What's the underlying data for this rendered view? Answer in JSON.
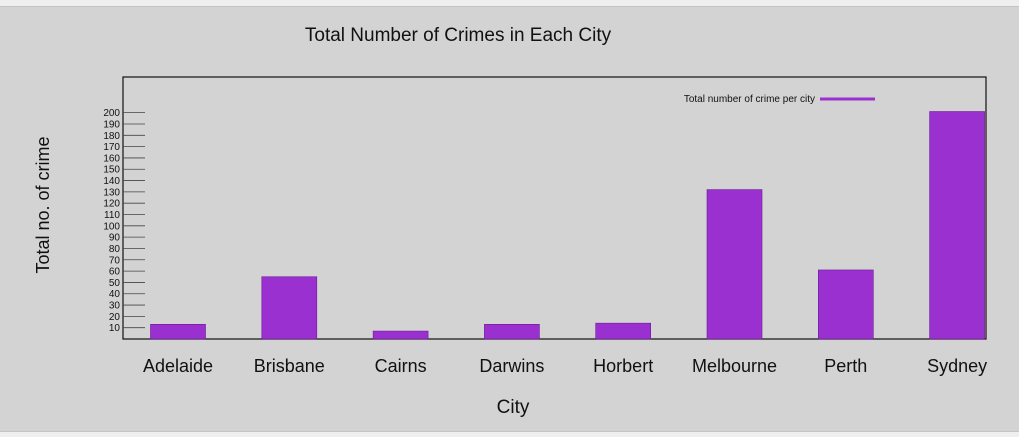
{
  "chart_data": {
    "type": "bar",
    "title": "Total Number of Crimes in Each City",
    "xlabel": "City",
    "ylabel": "Total no. of crime",
    "categories": [
      "Adelaide",
      "Brisbane",
      "Cairns",
      "Darwins",
      "Horbert",
      "Melbourne",
      "Perth",
      "Sydney"
    ],
    "series": [
      {
        "name": "Total number of crime per city",
        "values": [
          13,
          55,
          7,
          13,
          14,
          132,
          61,
          201
        ]
      }
    ],
    "y_ticks": [
      "10",
      "20",
      "30",
      "40",
      "50",
      "60",
      "70",
      "80",
      "90",
      "100",
      "110",
      "120",
      "130",
      "140",
      "150",
      "160",
      "170",
      "180",
      "190",
      "200"
    ],
    "ylim": [
      0,
      205
    ],
    "grid": false,
    "legend_position": "top-right",
    "bar_color": "#9b30d0"
  }
}
